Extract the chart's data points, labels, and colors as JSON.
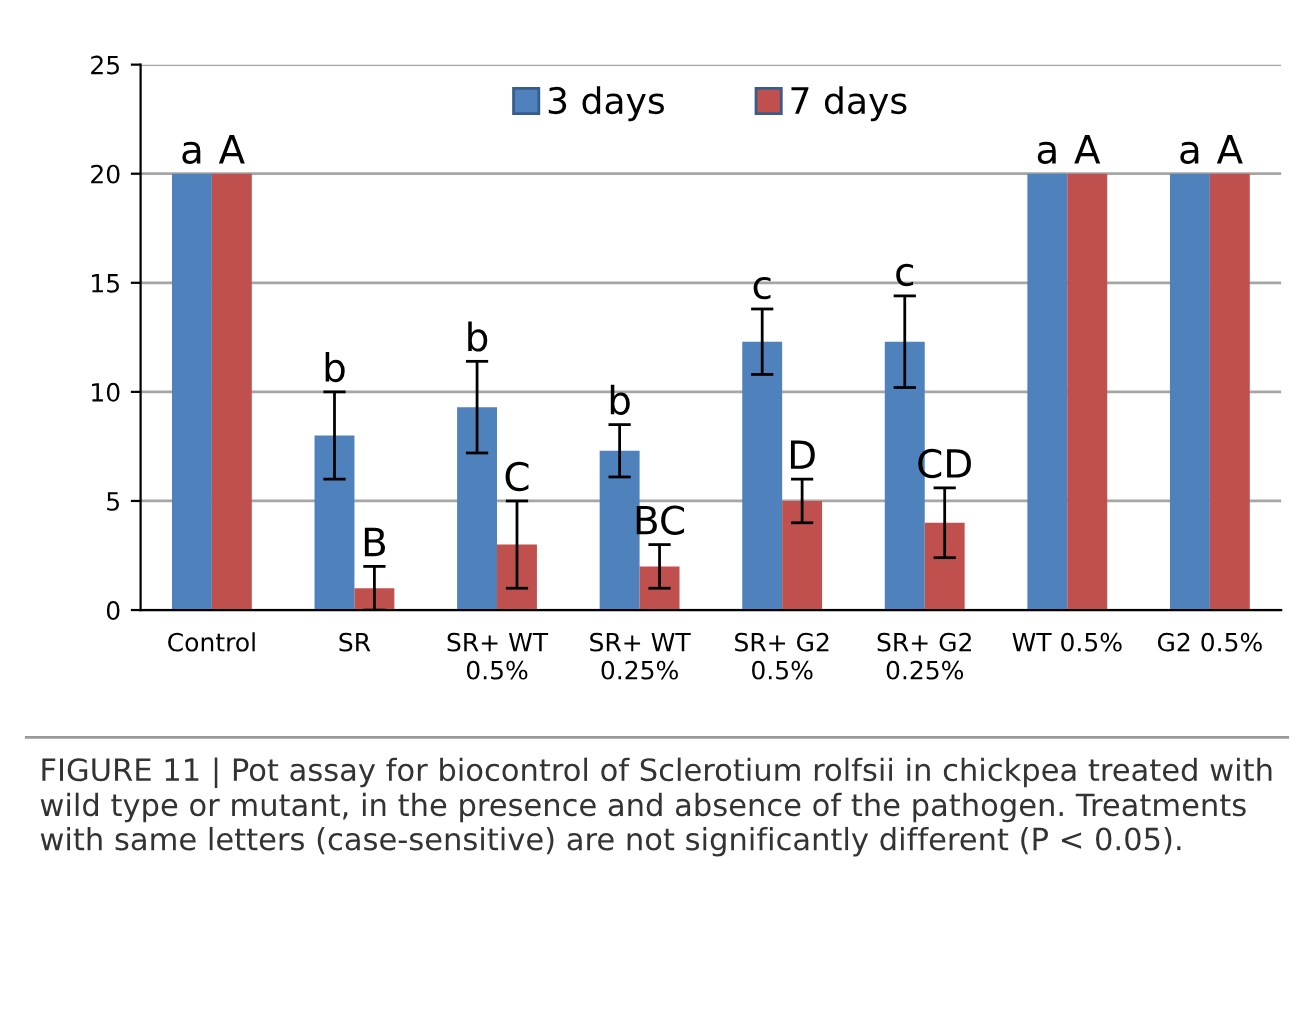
{
  "chart_data": {
    "type": "bar",
    "categories": [
      "Control",
      "SR",
      "SR+ WT\n0.5%",
      "SR+ WT\n0.25%",
      "SR+ G2\n0.5%",
      "SR+ G2\n0.25%",
      "WT 0.5%",
      "G2 0.5%"
    ],
    "series": [
      {
        "name": "3 days",
        "color": "#4f81bd",
        "values": [
          20,
          8,
          9.3,
          7.3,
          12.3,
          12.3,
          20,
          20
        ],
        "errors": [
          null,
          2,
          2.1,
          1.2,
          1.5,
          2.1,
          null,
          null
        ],
        "value_labels": [
          "a",
          "b",
          "b",
          "b",
          "c",
          "c",
          "a",
          "a"
        ]
      },
      {
        "name": "7 days",
        "color": "#c0504d",
        "values": [
          20,
          1,
          3,
          2,
          5,
          4,
          20,
          20
        ],
        "errors": [
          null,
          1,
          2,
          1,
          1,
          1.6,
          null,
          null
        ],
        "value_labels": [
          "A",
          "B",
          "C",
          "BC",
          "D",
          "CD",
          "A",
          "A"
        ]
      }
    ],
    "ylim": [
      0,
      25
    ],
    "yticks": [
      0,
      5,
      10,
      15,
      20,
      25
    ],
    "grid": "y",
    "legend": "top",
    "annotations": [
      "FIGURE 11 | Pot assay for biocontrol of Sclerotium rolfsii in chickpea treated with wild type or mutant, in the presence and absence of the pathogen. Treatments with same letters (case-sensitive) are not significantly different (P < 0.05)."
    ]
  }
}
